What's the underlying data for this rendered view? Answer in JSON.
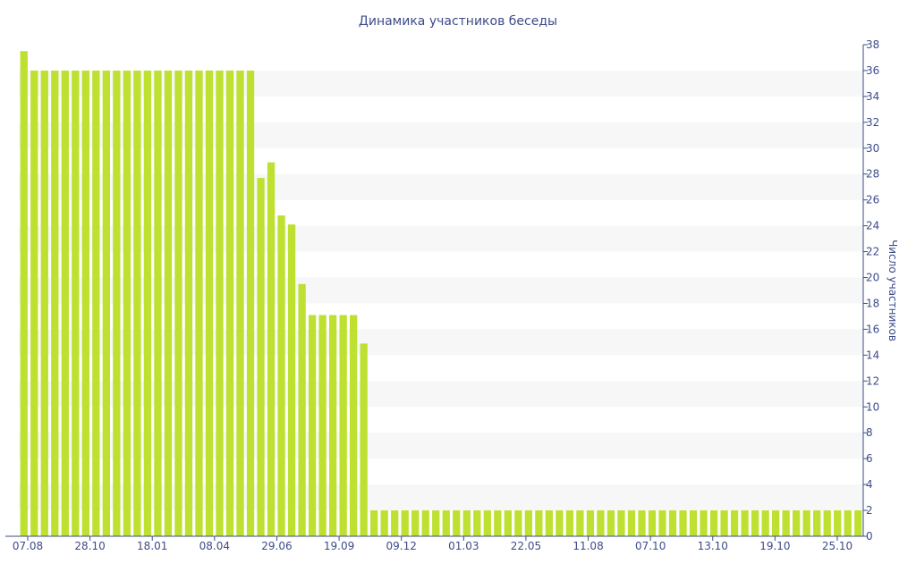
{
  "chart_data": {
    "type": "bar",
    "title": "Динамика участников беседы",
    "ylabel": "Число участников",
    "xlabel": "",
    "ylim": [
      0,
      38
    ],
    "yticks": [
      0,
      2,
      4,
      6,
      8,
      10,
      12,
      14,
      16,
      18,
      20,
      22,
      24,
      26,
      28,
      30,
      32,
      34,
      36,
      38
    ],
    "y_axis_position": "right",
    "grid": "alternating horizontal bands",
    "legend": "none",
    "x_tick_labels": [
      "07.08",
      "28.10",
      "18.01",
      "08.04",
      "29.06",
      "19.09",
      "09.12",
      "01.03",
      "22.05",
      "11.08",
      "07.10",
      "13.10",
      "19.10",
      "25.10"
    ],
    "values": [
      37.5,
      36,
      36,
      36,
      36,
      36,
      36,
      36,
      36,
      36,
      36,
      36,
      36,
      36,
      36,
      36,
      36,
      36,
      36,
      36,
      36,
      36,
      36,
      27.7,
      28.9,
      24.8,
      24.1,
      19.5,
      17.1,
      17.1,
      17.1,
      17.1,
      17.1,
      14.9,
      2,
      2,
      2,
      2,
      2,
      2,
      2,
      2,
      2,
      2,
      2,
      2,
      2,
      2,
      2,
      2,
      2,
      2,
      2,
      2,
      2,
      2,
      2,
      2,
      2,
      2,
      2,
      2,
      2,
      2,
      2,
      2,
      2,
      2,
      2,
      2,
      2,
      2,
      2,
      2,
      2,
      2,
      2,
      2,
      2,
      2,
      2,
      2
    ],
    "colors": {
      "bar": "#bde031",
      "band": "#f7f7f7",
      "axis": "#3c4b8a",
      "text": "#3c4b8a"
    }
  }
}
